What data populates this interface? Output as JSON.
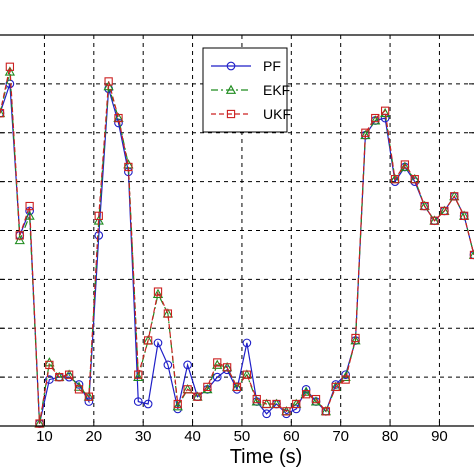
{
  "chart_data": {
    "type": "line",
    "xlabel": "Time (s)",
    "ylabel": "",
    "xlim": [
      1,
      97
    ],
    "ylim": [
      0,
      8
    ],
    "xticks": [
      10,
      20,
      30,
      40,
      50,
      60,
      70,
      80,
      90
    ],
    "yticks": [
      1,
      2,
      3,
      4,
      5,
      6,
      7
    ],
    "grid": true,
    "legend_position": "top-center",
    "x": [
      1,
      3,
      5,
      7,
      9,
      11,
      13,
      15,
      17,
      19,
      21,
      23,
      25,
      27,
      29,
      31,
      33,
      35,
      37,
      39,
      41,
      43,
      45,
      47,
      49,
      51,
      53,
      55,
      57,
      59,
      61,
      63,
      65,
      67,
      69,
      71,
      73,
      75,
      77,
      79,
      81,
      83,
      85,
      87,
      89,
      91,
      93,
      95,
      97
    ],
    "series": [
      {
        "name": "PF",
        "color": "#1f1fc8",
        "marker": "circle",
        "dash": "solid",
        "values": [
          6.4,
          7.0,
          3.9,
          4.4,
          0.05,
          0.95,
          1.0,
          1.0,
          0.85,
          0.5,
          3.9,
          6.9,
          6.2,
          5.2,
          0.5,
          0.45,
          1.7,
          1.25,
          0.35,
          1.25,
          0.6,
          0.75,
          1.0,
          1.15,
          0.75,
          1.7,
          0.5,
          0.25,
          0.45,
          0.25,
          0.35,
          0.75,
          0.5,
          0.3,
          0.85,
          1.05,
          1.75,
          5.95,
          6.25,
          6.3,
          5.0,
          5.3,
          5.0,
          4.5,
          4.2,
          4.4,
          4.7,
          4.3,
          3.5
        ]
      },
      {
        "name": "EKF",
        "color": "#1f8c1f",
        "marker": "triangle",
        "dash": "dashdot",
        "values": [
          6.4,
          7.25,
          3.8,
          4.3,
          0.05,
          1.3,
          1.0,
          1.05,
          0.8,
          0.6,
          4.2,
          6.95,
          6.3,
          5.35,
          1.0,
          1.75,
          2.7,
          2.3,
          0.4,
          0.75,
          0.6,
          0.75,
          1.25,
          1.2,
          0.8,
          1.05,
          0.5,
          0.45,
          0.45,
          0.3,
          0.45,
          0.7,
          0.5,
          0.3,
          0.8,
          1.0,
          1.75,
          5.95,
          6.25,
          6.4,
          5.05,
          5.3,
          5.05,
          4.5,
          4.2,
          4.4,
          4.7,
          4.3,
          3.5
        ]
      },
      {
        "name": "UKF",
        "color": "#cc2020",
        "marker": "square",
        "dash": "dashed",
        "values": [
          6.4,
          7.35,
          3.9,
          4.5,
          0.05,
          1.25,
          1.0,
          1.05,
          0.75,
          0.6,
          4.3,
          7.05,
          6.3,
          5.3,
          1.05,
          1.75,
          2.75,
          2.3,
          0.45,
          0.75,
          0.6,
          0.8,
          1.3,
          1.2,
          0.8,
          1.05,
          0.55,
          0.45,
          0.45,
          0.3,
          0.45,
          0.65,
          0.55,
          0.3,
          0.8,
          0.95,
          1.8,
          6.0,
          6.3,
          6.45,
          5.05,
          5.35,
          5.05,
          4.5,
          4.2,
          4.4,
          4.7,
          4.3,
          3.5
        ]
      }
    ]
  }
}
